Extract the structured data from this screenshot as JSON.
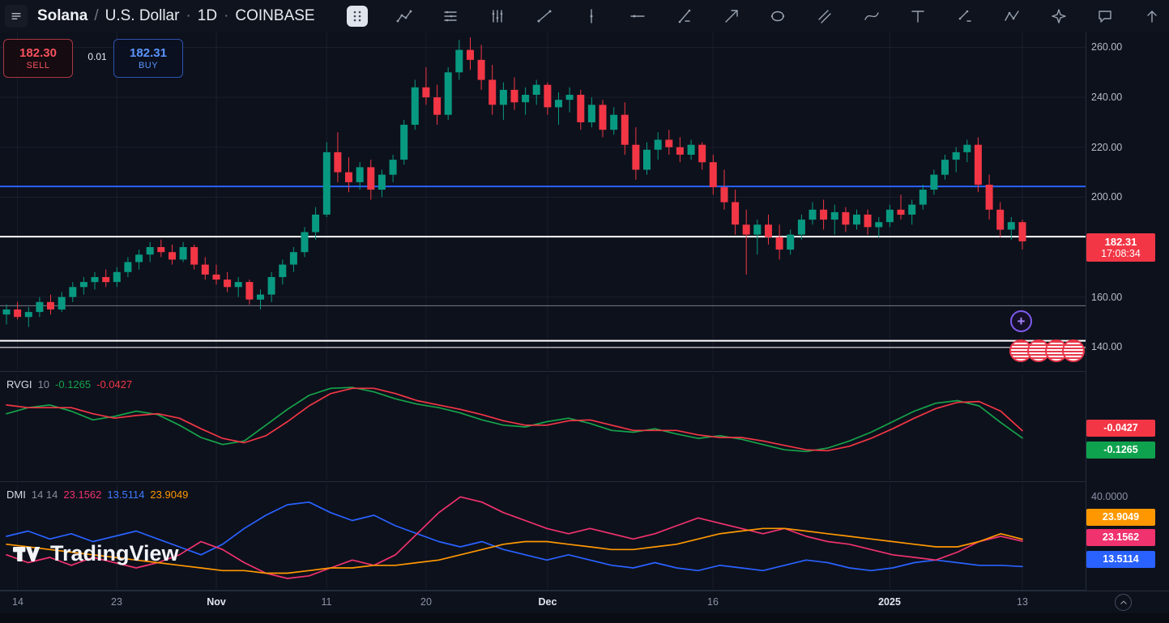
{
  "header": {
    "symbol": "Solana",
    "slash": "/",
    "description": "U.S. Dollar",
    "dot1": "·",
    "interval": "1D",
    "dot2": "·",
    "exchange": "COINBASE"
  },
  "order_widget": {
    "sell_price": "182.30",
    "sell_label": "SELL",
    "spread": "0.01",
    "buy_price": "182.31",
    "buy_label": "BUY",
    "sell_color": "#f7525f",
    "buy_color": "#5b94ff"
  },
  "price_scale": {
    "last_price": {
      "label": "182.31",
      "countdown": "17:08:34",
      "value": 182.31,
      "bg": "#f23645"
    },
    "rvgi_badges": [
      {
        "label": "-0.0427",
        "bg": "#f23645"
      },
      {
        "label": "-0.1265",
        "bg": "#0fa24e"
      }
    ],
    "dmi_axis_label": "40.0000",
    "dmi_badges": [
      {
        "label": "23.9049",
        "bg": "#ff9800"
      },
      {
        "label": "23.1562",
        "bg": "#f0326e"
      },
      {
        "label": "13.5114",
        "bg": "#2962ff"
      }
    ]
  },
  "rvgi_pane": {
    "title": "RVGI",
    "param": "10",
    "value_main": "-0.1265",
    "value_signal": "-0.0427"
  },
  "dmi_pane": {
    "title": "DMI",
    "params": "14 14",
    "value_minus_di": "23.1562",
    "value_plus_di": "13.5114",
    "value_adx": "23.9049"
  },
  "watermark": {
    "text": "TradingView"
  },
  "chart_data": {
    "type": "candlestick",
    "title": "Solana / U.S. Dollar · 1D · COINBASE",
    "ylim": [
      131,
      266
    ],
    "up_color": "#089981",
    "down_color": "#f23645",
    "grid": true,
    "y_ticks": [
      {
        "label": "260.00",
        "value": 260
      },
      {
        "label": "240.00",
        "value": 240
      },
      {
        "label": "220.00",
        "value": 220
      },
      {
        "label": "200.00",
        "value": 200
      },
      {
        "label": "160.00",
        "value": 160
      },
      {
        "label": "140.00",
        "value": 140
      }
    ],
    "x_ticks": [
      {
        "label": "14",
        "i": 1,
        "major": false
      },
      {
        "label": "23",
        "i": 10,
        "major": false
      },
      {
        "label": "Nov",
        "i": 19,
        "major": true
      },
      {
        "label": "11",
        "i": 29,
        "major": false
      },
      {
        "label": "20",
        "i": 38,
        "major": false
      },
      {
        "label": "Dec",
        "i": 49,
        "major": true
      },
      {
        "label": "16",
        "i": 64,
        "major": false
      },
      {
        "label": "2025",
        "i": 80,
        "major": true
      },
      {
        "label": "13",
        "i": 92,
        "major": false
      }
    ],
    "horizontal_lines": [
      {
        "value": 204.3,
        "color": "#2962ff",
        "width": 2
      },
      {
        "value": 184.2,
        "color": "#ffffff",
        "width": 2
      },
      {
        "value": 156.5,
        "color": "#787b86",
        "width": 1
      },
      {
        "value": 142.5,
        "color": "#ffffff",
        "width": 2
      },
      {
        "value": 139.8,
        "color": "#ffffff",
        "width": 1
      }
    ],
    "candles": [
      [
        153,
        157,
        149,
        155
      ],
      [
        155,
        158,
        151,
        152
      ],
      [
        152,
        156,
        148,
        154
      ],
      [
        154,
        160,
        152,
        158
      ],
      [
        158,
        161,
        153,
        155
      ],
      [
        155,
        162,
        154,
        160
      ],
      [
        160,
        166,
        158,
        164
      ],
      [
        164,
        168,
        161,
        166
      ],
      [
        166,
        170,
        163,
        168
      ],
      [
        168,
        171,
        164,
        166
      ],
      [
        166,
        172,
        164,
        170
      ],
      [
        170,
        176,
        168,
        174
      ],
      [
        174,
        179,
        171,
        177
      ],
      [
        177,
        182,
        174,
        180
      ],
      [
        180,
        183,
        176,
        178
      ],
      [
        178,
        181,
        173,
        175
      ],
      [
        175,
        182,
        174,
        180
      ],
      [
        180,
        181,
        171,
        173
      ],
      [
        173,
        176,
        167,
        169
      ],
      [
        169,
        173,
        165,
        167
      ],
      [
        167,
        170,
        162,
        164
      ],
      [
        164,
        168,
        160,
        166
      ],
      [
        166,
        167,
        157,
        159
      ],
      [
        159,
        163,
        155,
        161
      ],
      [
        161,
        170,
        158,
        168
      ],
      [
        168,
        175,
        165,
        173
      ],
      [
        173,
        180,
        170,
        178
      ],
      [
        178,
        188,
        176,
        186
      ],
      [
        186,
        196,
        183,
        193
      ],
      [
        193,
        222,
        192,
        218
      ],
      [
        218,
        226,
        206,
        210
      ],
      [
        210,
        216,
        202,
        206
      ],
      [
        206,
        214,
        203,
        212
      ],
      [
        212,
        215,
        199,
        203
      ],
      [
        203,
        211,
        200,
        209
      ],
      [
        209,
        217,
        206,
        215
      ],
      [
        215,
        231,
        213,
        229
      ],
      [
        229,
        247,
        227,
        244
      ],
      [
        244,
        252,
        237,
        240
      ],
      [
        240,
        245,
        229,
        233
      ],
      [
        233,
        252,
        231,
        250
      ],
      [
        250,
        263,
        247,
        259
      ],
      [
        259,
        264,
        251,
        255
      ],
      [
        255,
        261,
        243,
        247
      ],
      [
        247,
        253,
        233,
        237
      ],
      [
        237,
        246,
        231,
        243
      ],
      [
        243,
        248,
        235,
        238
      ],
      [
        238,
        244,
        233,
        241
      ],
      [
        241,
        247,
        237,
        245
      ],
      [
        245,
        246,
        233,
        236
      ],
      [
        236,
        242,
        229,
        239
      ],
      [
        239,
        244,
        234,
        241
      ],
      [
        241,
        243,
        227,
        230
      ],
      [
        230,
        240,
        228,
        237
      ],
      [
        237,
        239,
        224,
        227
      ],
      [
        227,
        236,
        225,
        233
      ],
      [
        233,
        238,
        217,
        221
      ],
      [
        221,
        228,
        207,
        211
      ],
      [
        211,
        222,
        209,
        219
      ],
      [
        219,
        226,
        215,
        223
      ],
      [
        223,
        227,
        217,
        220
      ],
      [
        220,
        224,
        214,
        217
      ],
      [
        217,
        223,
        215,
        221
      ],
      [
        221,
        222,
        211,
        214
      ],
      [
        214,
        217,
        201,
        204
      ],
      [
        204,
        211,
        195,
        198
      ],
      [
        198,
        203,
        185,
        189
      ],
      [
        189,
        195,
        169,
        185
      ],
      [
        185,
        191,
        177,
        189
      ],
      [
        189,
        193,
        181,
        184
      ],
      [
        184,
        189,
        175,
        179
      ],
      [
        179,
        187,
        177,
        185
      ],
      [
        185,
        193,
        183,
        191
      ],
      [
        191,
        198,
        189,
        195
      ],
      [
        195,
        199,
        187,
        191
      ],
      [
        191,
        197,
        185,
        194
      ],
      [
        194,
        196,
        186,
        189
      ],
      [
        189,
        195,
        187,
        193
      ],
      [
        193,
        195,
        185,
        188
      ],
      [
        188,
        192,
        184,
        190
      ],
      [
        190,
        197,
        188,
        195
      ],
      [
        195,
        201,
        191,
        193
      ],
      [
        193,
        199,
        189,
        197
      ],
      [
        197,
        205,
        195,
        203
      ],
      [
        203,
        211,
        201,
        209
      ],
      [
        209,
        217,
        207,
        215
      ],
      [
        215,
        220,
        210,
        218
      ],
      [
        218,
        223,
        214,
        221
      ],
      [
        221,
        224,
        202,
        205
      ],
      [
        205,
        209,
        191,
        195
      ],
      [
        195,
        198,
        184,
        187
      ],
      [
        187,
        192,
        183,
        190
      ],
      [
        190,
        191,
        179,
        182.31
      ]
    ],
    "indicators": {
      "rvgi": {
        "name": "RVGI",
        "param": "10",
        "range": [
          -0.6,
          0.6
        ],
        "series": [
          {
            "name": "RVGI",
            "color": "#16a34a",
            "last": -0.1265,
            "values": [
              0.15,
              0.22,
              0.25,
              0.18,
              0.08,
              0.12,
              0.18,
              0.14,
              0.02,
              -0.12,
              -0.2,
              -0.16,
              0.02,
              0.2,
              0.36,
              0.44,
              0.45,
              0.4,
              0.32,
              0.26,
              0.22,
              0.16,
              0.08,
              0.02,
              0.0,
              0.06,
              0.1,
              0.04,
              -0.04,
              -0.06,
              -0.02,
              -0.08,
              -0.13,
              -0.1,
              -0.14,
              -0.2,
              -0.26,
              -0.28,
              -0.24,
              -0.16,
              -0.06,
              0.06,
              0.18,
              0.27,
              0.3,
              0.24,
              0.05,
              -0.1265
            ]
          },
          {
            "name": "Signal",
            "color": "#f23645",
            "last": -0.0427,
            "values": [
              0.25,
              0.22,
              0.22,
              0.22,
              0.15,
              0.1,
              0.13,
              0.15,
              0.1,
              -0.02,
              -0.13,
              -0.18,
              -0.1,
              0.06,
              0.24,
              0.38,
              0.44,
              0.44,
              0.38,
              0.3,
              0.25,
              0.2,
              0.14,
              0.07,
              0.02,
              0.02,
              0.07,
              0.08,
              0.02,
              -0.04,
              -0.04,
              -0.04,
              -0.09,
              -0.12,
              -0.12,
              -0.16,
              -0.21,
              -0.26,
              -0.27,
              -0.22,
              -0.13,
              -0.02,
              0.1,
              0.21,
              0.28,
              0.29,
              0.18,
              -0.0427
            ]
          }
        ]
      },
      "dmi": {
        "name": "DMI",
        "params": "14 14",
        "range": [
          5,
          45
        ],
        "axis_label": {
          "label": "40.0000",
          "value": 40
        },
        "series": [
          {
            "name": "+DI",
            "color": "#2962ff",
            "last": 13.5114,
            "values": [
              25,
              27,
              24,
              26,
              23,
              25,
              27,
              24,
              21,
              18,
              22,
              28,
              33,
              37,
              38,
              34,
              31,
              33,
              29,
              26,
              23,
              21,
              23,
              20,
              18,
              16,
              18,
              16,
              14,
              13,
              15,
              13,
              12,
              14,
              13,
              12,
              14,
              16,
              15,
              13,
              12,
              13,
              15,
              16,
              15,
              14,
              14,
              13.51
            ]
          },
          {
            "name": "-DI",
            "color": "#f0326e",
            "last": 23.1562,
            "values": [
              18,
              15,
              17,
              14,
              17,
              15,
              13,
              15,
              18,
              23,
              20,
              15,
              11,
              9,
              10,
              13,
              16,
              14,
              18,
              26,
              34,
              40,
              38,
              34,
              31,
              28,
              26,
              28,
              26,
              24,
              26,
              29,
              32,
              30,
              28,
              26,
              28,
              25,
              23,
              22,
              20,
              18,
              17,
              16,
              19,
              23,
              25,
              23.16
            ]
          },
          {
            "name": "ADX",
            "color": "#ff9800",
            "last": 23.9049,
            "values": [
              22,
              21,
              20,
              19,
              18,
              17,
              16,
              15,
              14,
              13,
              12,
              12,
              11,
              11,
              12,
              13,
              13,
              14,
              14,
              15,
              16,
              18,
              20,
              22,
              23,
              23,
              22,
              21,
              20,
              20,
              21,
              22,
              24,
              26,
              27,
              28,
              28,
              27,
              26,
              25,
              24,
              23,
              22,
              21,
              21,
              23,
              26,
              23.9
            ]
          }
        ]
      }
    }
  }
}
